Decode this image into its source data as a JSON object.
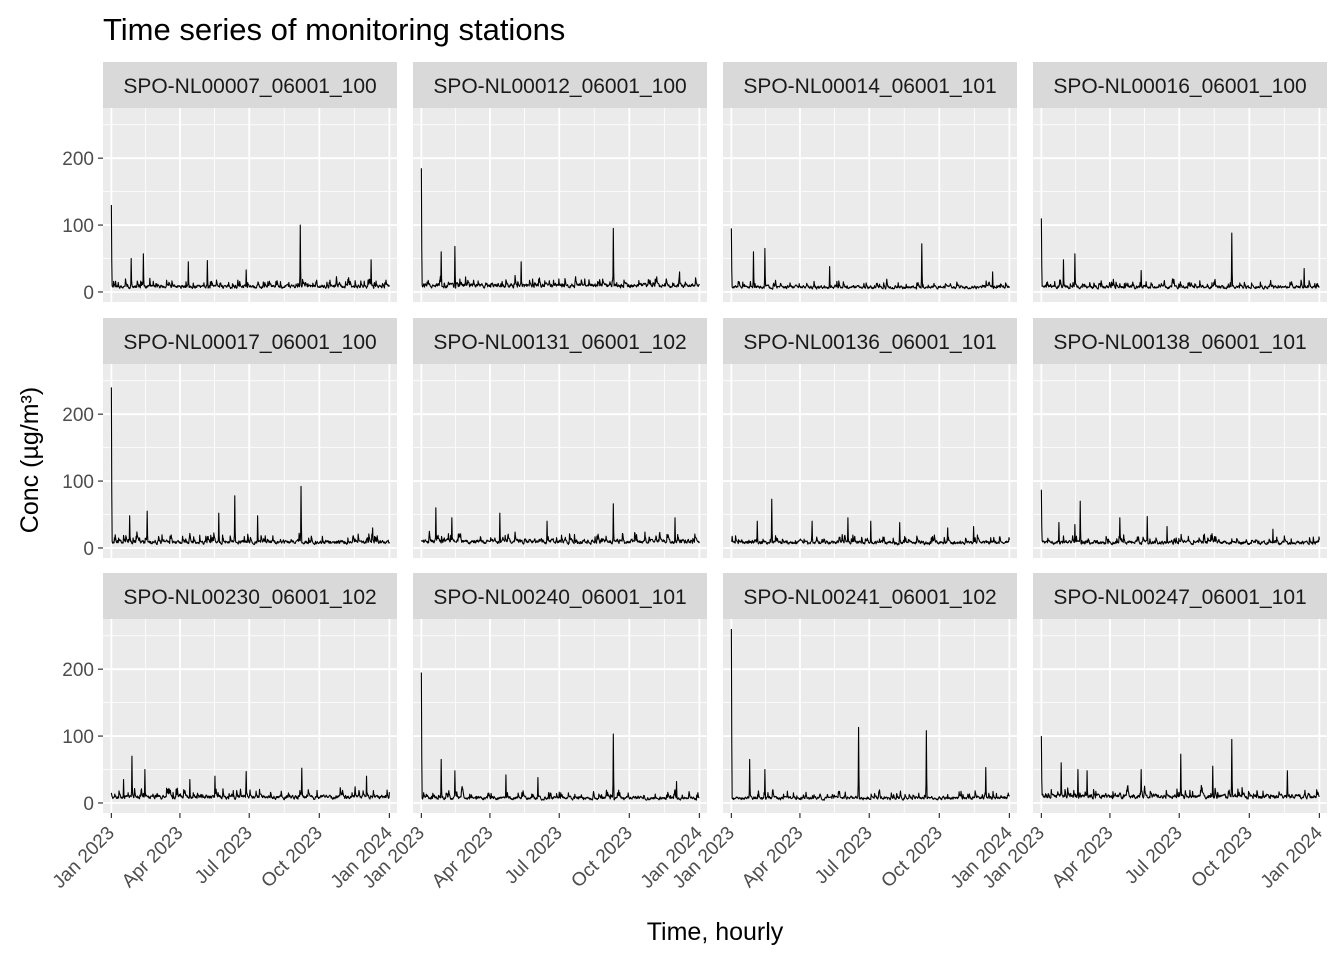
{
  "chart_data": {
    "type": "line",
    "title": "Time series of monitoring stations",
    "xlabel": "Time, hourly",
    "ylabel": "Conc (µg/m³)",
    "facet_layout": {
      "rows": 3,
      "cols": 4
    },
    "x_ticks": [
      "Jan 2023",
      "Apr 2023",
      "Jul 2023",
      "Oct 2023",
      "Jan 2024"
    ],
    "x_tick_dates": [
      "2023-01-01",
      "2023-04-01",
      "2023-07-01",
      "2023-10-01",
      "2024-01-01"
    ],
    "xlim": [
      "2022-12-21",
      "2024-01-11"
    ],
    "y_ticks": [
      0,
      100,
      200
    ],
    "ylim": [
      -15,
      275
    ],
    "grid": true,
    "colors": {
      "panel_background": "#ebebeb",
      "strip_background": "#d9d9d9",
      "gridline": "#ffffff",
      "line": "#000000",
      "tick_text": "#4d4d4d"
    },
    "series": [
      {
        "name": "SPO-NL00007_06001_100",
        "base": 10,
        "peaks": [
          [
            "2023-01-01",
            130
          ],
          [
            "2023-01-27",
            50
          ],
          [
            "2023-02-12",
            57
          ],
          [
            "2023-04-12",
            45
          ],
          [
            "2023-05-07",
            47
          ],
          [
            "2023-06-27",
            33
          ],
          [
            "2023-09-06",
            100
          ],
          [
            "2023-12-08",
            48
          ]
        ]
      },
      {
        "name": "SPO-NL00012_06001_100",
        "base": 12,
        "peaks": [
          [
            "2023-01-01",
            185
          ],
          [
            "2023-01-27",
            60
          ],
          [
            "2023-02-14",
            68
          ],
          [
            "2023-05-12",
            45
          ],
          [
            "2023-09-10",
            95
          ],
          [
            "2023-12-06",
            30
          ]
        ]
      },
      {
        "name": "SPO-NL00014_06001_101",
        "base": 9,
        "peaks": [
          [
            "2023-01-01",
            95
          ],
          [
            "2023-01-30",
            60
          ],
          [
            "2023-02-14",
            65
          ],
          [
            "2023-05-10",
            38
          ],
          [
            "2023-09-08",
            72
          ],
          [
            "2023-12-10",
            30
          ]
        ]
      },
      {
        "name": "SPO-NL00016_06001_100",
        "base": 9,
        "peaks": [
          [
            "2023-01-01",
            110
          ],
          [
            "2023-01-30",
            48
          ],
          [
            "2023-02-14",
            57
          ],
          [
            "2023-05-12",
            32
          ],
          [
            "2023-09-08",
            88
          ],
          [
            "2023-12-12",
            35
          ]
        ]
      },
      {
        "name": "SPO-NL00017_06001_100",
        "base": 11,
        "peaks": [
          [
            "2023-01-01",
            240
          ],
          [
            "2023-01-25",
            48
          ],
          [
            "2023-02-17",
            55
          ],
          [
            "2023-05-22",
            52
          ],
          [
            "2023-06-12",
            78
          ],
          [
            "2023-07-12",
            48
          ],
          [
            "2023-09-07",
            92
          ],
          [
            "2023-12-10",
            30
          ]
        ]
      },
      {
        "name": "SPO-NL00131_06001_102",
        "base": 12,
        "peaks": [
          [
            "2023-01-20",
            60
          ],
          [
            "2023-02-10",
            45
          ],
          [
            "2023-04-14",
            52
          ],
          [
            "2023-06-15",
            40
          ],
          [
            "2023-09-10",
            66
          ],
          [
            "2023-11-30",
            45
          ]
        ]
      },
      {
        "name": "SPO-NL00136_06001_101",
        "base": 10,
        "peaks": [
          [
            "2023-02-04",
            40
          ],
          [
            "2023-02-23",
            73
          ],
          [
            "2023-04-17",
            40
          ],
          [
            "2023-06-03",
            45
          ],
          [
            "2023-07-03",
            40
          ],
          [
            "2023-08-10",
            38
          ],
          [
            "2023-10-12",
            30
          ],
          [
            "2023-11-15",
            32
          ]
        ]
      },
      {
        "name": "SPO-NL00138_06001_101",
        "base": 10,
        "peaks": [
          [
            "2023-01-01",
            87
          ],
          [
            "2023-01-24",
            38
          ],
          [
            "2023-02-14",
            35
          ],
          [
            "2023-02-21",
            70
          ],
          [
            "2023-04-14",
            45
          ],
          [
            "2023-05-20",
            47
          ],
          [
            "2023-06-15",
            32
          ],
          [
            "2023-11-01",
            28
          ]
        ]
      },
      {
        "name": "SPO-NL00230_06001_102",
        "base": 11,
        "peaks": [
          [
            "2023-01-17",
            35
          ],
          [
            "2023-01-28",
            70
          ],
          [
            "2023-02-14",
            50
          ],
          [
            "2023-04-14",
            35
          ],
          [
            "2023-05-17",
            40
          ],
          [
            "2023-06-27",
            47
          ],
          [
            "2023-09-08",
            52
          ],
          [
            "2023-12-02",
            40
          ]
        ]
      },
      {
        "name": "SPO-NL00240_06001_101",
        "base": 9,
        "peaks": [
          [
            "2023-01-01",
            195
          ],
          [
            "2023-01-27",
            65
          ],
          [
            "2023-02-14",
            48
          ],
          [
            "2023-04-22",
            42
          ],
          [
            "2023-06-03",
            38
          ],
          [
            "2023-09-10",
            103
          ],
          [
            "2023-12-02",
            32
          ]
        ]
      },
      {
        "name": "SPO-NL00241_06001_102",
        "base": 9,
        "peaks": [
          [
            "2023-01-01",
            260
          ],
          [
            "2023-01-25",
            65
          ],
          [
            "2023-02-14",
            50
          ],
          [
            "2023-06-17",
            113
          ],
          [
            "2023-09-14",
            108
          ],
          [
            "2023-12-01",
            53
          ]
        ]
      },
      {
        "name": "SPO-NL00247_06001_101",
        "base": 12,
        "peaks": [
          [
            "2023-01-01",
            100
          ],
          [
            "2023-01-27",
            60
          ],
          [
            "2023-02-18",
            50
          ],
          [
            "2023-03-02",
            48
          ],
          [
            "2023-05-12",
            50
          ],
          [
            "2023-07-03",
            73
          ],
          [
            "2023-08-14",
            55
          ],
          [
            "2023-09-08",
            95
          ],
          [
            "2023-11-20",
            48
          ]
        ]
      }
    ]
  }
}
